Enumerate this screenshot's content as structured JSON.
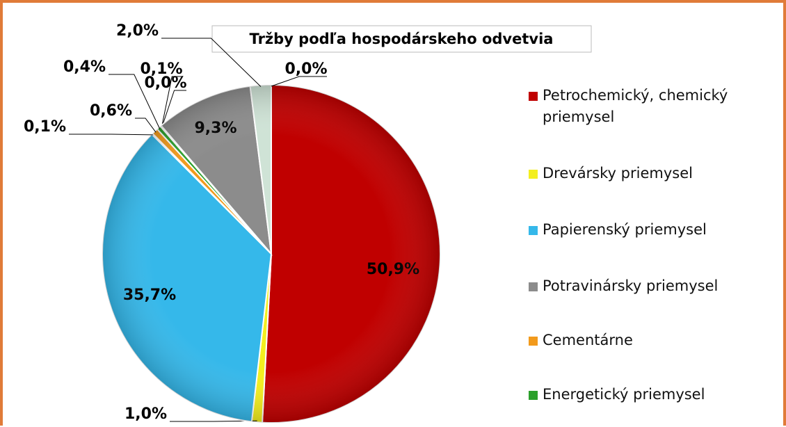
{
  "chart_data": {
    "type": "pie",
    "title": "Tržby podľa hospodárskeho odvetvia",
    "values": [
      50.9,
      1.0,
      35.7,
      0.1,
      0.6,
      0.4,
      0.1,
      0.0,
      9.3,
      2.0,
      0.0
    ],
    "value_labels": [
      "50,9%",
      "1,0%",
      "35,7%",
      "0,1%",
      "0,6%",
      "0,4%",
      "0,1%",
      "0,0%",
      "9,3%",
      "2,0%",
      "0,0%"
    ],
    "colors": [
      "#c00000",
      "#f3ef1f",
      "#35b8ea",
      "#7a5c2e",
      "#f29a1c",
      "#2ca02c",
      "#6d6d6d",
      "#444444",
      "#8c8c8c",
      "#cfe3d6",
      "#e8e8e8"
    ],
    "legend": [
      {
        "name": "Petrochemický, chemický priemysel",
        "color": "#c00000"
      },
      {
        "name": "Drevársky priemysel",
        "color": "#f3ef1f"
      },
      {
        "name": "Papierenský priemysel",
        "color": "#35b8ea"
      },
      {
        "name": "Potravinársky priemysel",
        "color": "#8c8c8c"
      },
      {
        "name": "Cementárne",
        "color": "#f29a1c"
      },
      {
        "name": "Energetický priemysel",
        "color": "#2ca02c"
      }
    ]
  }
}
